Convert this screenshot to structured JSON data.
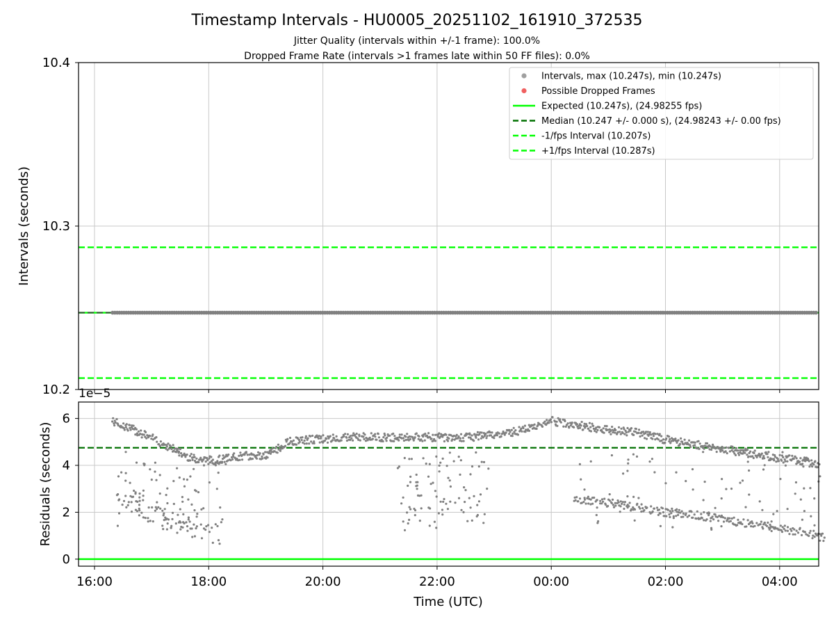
{
  "title": "Timestamp Intervals - HU0005_20251102_161910_372535",
  "subtitle1": "Jitter Quality (intervals within +/-1 frame): 100.0%",
  "subtitle2": "Dropped Frame Rate (intervals >1 frames late within 50 FF files): 0.0%",
  "colors": {
    "points": "#808080",
    "dropped": "#f06060",
    "expected": "#00ff00",
    "median": "#007000",
    "interval": "#00ff00",
    "grid": "#c8c8c8"
  },
  "chart_data": [
    {
      "type": "scatter",
      "ylabel": "Intervals (seconds)",
      "ylim": [
        10.2,
        10.4
      ],
      "yticks": [
        "10.2",
        "10.3",
        "10.4"
      ],
      "grid": true,
      "legend_position": "top-right",
      "legend": [
        {
          "label": "Intervals, max (10.247s), min (10.247s)",
          "kind": "dot",
          "color": "#a0a0a0"
        },
        {
          "label": "Possible Dropped Frames",
          "kind": "dot",
          "color": "#f06060"
        },
        {
          "label": "Expected (10.247s), (24.98255 fps)",
          "kind": "solid",
          "color": "#00ff00"
        },
        {
          "label": "Median (10.247 +/- 0.000 s), (24.98243 +/- 0.00 fps)",
          "kind": "dash",
          "color": "#007000"
        },
        {
          "label": "-1/fps Interval (10.207s)",
          "kind": "dash",
          "color": "#00ff00"
        },
        {
          "label": "+1/fps Interval (10.287s)",
          "kind": "dash",
          "color": "#00ff00"
        }
      ],
      "series": [
        {
          "name": "Intervals, max (10.247s), min (10.247s)",
          "x_range": [
            "16:19",
            "04:40"
          ],
          "y": 10.247
        },
        {
          "name": "Expected (10.247s), (24.98255 fps)",
          "y": 10.247
        },
        {
          "name": "Median (10.247 +/- 0.000 s), (24.98243 +/- 0.00 fps)",
          "y": 10.247
        },
        {
          "name": "-1/fps Interval (10.207s)",
          "y": 10.207
        },
        {
          "name": "+1/fps Interval (10.287s)",
          "y": 10.287
        }
      ]
    },
    {
      "type": "scatter",
      "xlabel": "Time (UTC)",
      "ylabel": "Residuals (seconds)",
      "scale_label": "1e−5",
      "ylim": [
        -0.3,
        6.7
      ],
      "yticks": [
        "0",
        "2",
        "4",
        "6"
      ],
      "xticks": [
        "16:00",
        "18:00",
        "20:00",
        "22:00",
        "00:00",
        "02:00",
        "04:00"
      ],
      "grid": true,
      "median_residual": 4.75,
      "zero_line": 0,
      "main_band": [
        [
          16.3,
          5.9
        ],
        [
          16.8,
          5.4
        ],
        [
          17.3,
          4.8
        ],
        [
          17.7,
          4.3
        ],
        [
          18.1,
          4.2
        ],
        [
          18.6,
          4.4
        ],
        [
          19.0,
          4.4
        ],
        [
          19.4,
          5.0
        ],
        [
          19.8,
          5.1
        ],
        [
          20.5,
          5.2
        ],
        [
          21.5,
          5.2
        ],
        [
          22.5,
          5.2
        ],
        [
          23.0,
          5.3
        ],
        [
          23.5,
          5.5
        ],
        [
          24.0,
          5.9
        ],
        [
          24.2,
          5.8
        ],
        [
          24.5,
          5.7
        ],
        [
          25.0,
          5.5
        ],
        [
          25.5,
          5.4
        ],
        [
          26.0,
          5.1
        ],
        [
          26.5,
          4.9
        ],
        [
          27.0,
          4.7
        ],
        [
          27.5,
          4.5
        ],
        [
          28.0,
          4.3
        ],
        [
          28.4,
          4.2
        ],
        [
          28.7,
          4.0
        ]
      ],
      "lower_band": [
        [
          16.4,
          2.7
        ],
        [
          16.7,
          2.4
        ],
        [
          17.0,
          2.0
        ],
        [
          17.3,
          1.7
        ],
        [
          17.6,
          1.3
        ],
        [
          18.0,
          1.1
        ],
        [
          18.2,
          1.1
        ]
      ],
      "mid_band": [
        [
          21.3,
          2.0
        ],
        [
          21.8,
          2.0
        ],
        [
          22.3,
          2.1
        ],
        [
          22.8,
          2.1
        ]
      ],
      "late_band": [
        [
          24.4,
          2.6
        ],
        [
          25.0,
          2.4
        ],
        [
          25.5,
          2.2
        ],
        [
          26.0,
          2.0
        ],
        [
          26.5,
          1.9
        ],
        [
          27.0,
          1.7
        ],
        [
          27.5,
          1.5
        ],
        [
          28.0,
          1.3
        ],
        [
          28.5,
          1.1
        ],
        [
          28.8,
          0.9
        ]
      ]
    }
  ]
}
